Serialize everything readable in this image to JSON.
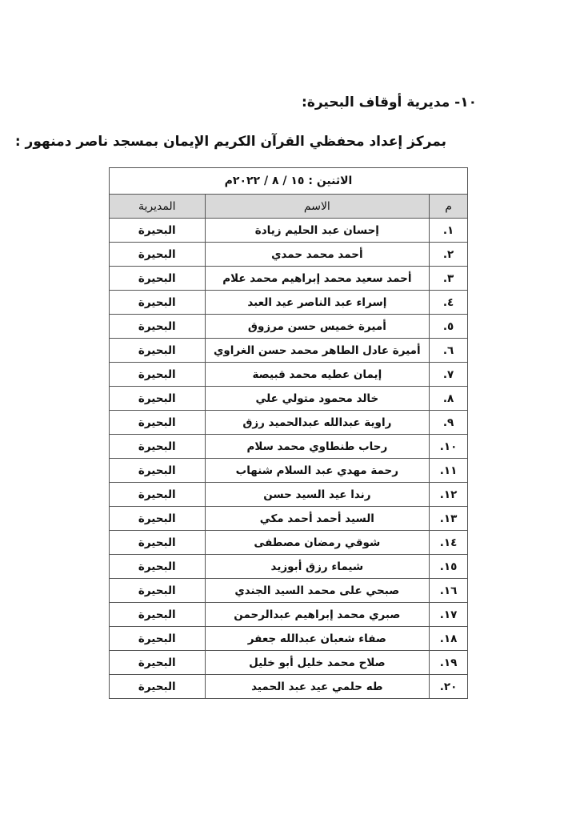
{
  "heading": "١٠- مديرية أوقاف البحيرة:",
  "subheading": "بمركز إعداد محفظي القرآن الكريم الإيمان بمسجد ناصر دمنهور :",
  "table": {
    "date": "الاثنين : ١٥ / ٨ / ٢٠٢٢م",
    "headers": {
      "no": "م",
      "name": "الاسم",
      "directorate": "المديرية"
    },
    "rows": [
      {
        "no": "١.",
        "name": "إحسان عبد الحليم زيادة",
        "directorate": "البحيرة"
      },
      {
        "no": "٢.",
        "name": "أحمد محمد حمدي",
        "directorate": "البحيرة"
      },
      {
        "no": "٣.",
        "name": "أحمد سعيد محمد إبراهيم محمد علام",
        "directorate": "البحيرة"
      },
      {
        "no": "٤.",
        "name": "إسراء عبد الناصر عيد العبد",
        "directorate": "البحيرة"
      },
      {
        "no": "٥.",
        "name": "أميرة خميس حسن مرزوق",
        "directorate": "البحيرة"
      },
      {
        "no": "٦.",
        "name": "أميرة عادل الطاهر محمد حسن الغراوي",
        "directorate": "البحيرة"
      },
      {
        "no": "٧.",
        "name": "إيمان عطيه محمد قبيصة",
        "directorate": "البحيرة"
      },
      {
        "no": "٨.",
        "name": "خالد محمود متولي علي",
        "directorate": "البحيرة"
      },
      {
        "no": "٩.",
        "name": "راوية عبدالله عبدالحميد رزق",
        "directorate": "البحيرة"
      },
      {
        "no": "١٠.",
        "name": "رحاب طنطاوي محمد سلام",
        "directorate": "البحيرة"
      },
      {
        "no": "١١.",
        "name": "رحمة مهدي عبد السلام شنهاب",
        "directorate": "البحيرة"
      },
      {
        "no": "١٢.",
        "name": "رندا عيد السيد حسن",
        "directorate": "البحيرة"
      },
      {
        "no": "١٣.",
        "name": "السيد أحمد أحمد مكي",
        "directorate": "البحيرة"
      },
      {
        "no": "١٤.",
        "name": "شوقي رمضان مصطفى",
        "directorate": "البحيرة"
      },
      {
        "no": "١٥.",
        "name": "شيماء رزق أبوزيد",
        "directorate": "البحيرة"
      },
      {
        "no": "١٦.",
        "name": "صبحي على محمد السيد الجندي",
        "directorate": "البحيرة"
      },
      {
        "no": "١٧.",
        "name": "صبري محمد إبراهيم عبدالرحمن",
        "directorate": "البحيرة"
      },
      {
        "no": "١٨.",
        "name": "صفاء شعبان عبدالله جعفر",
        "directorate": "البحيرة"
      },
      {
        "no": "١٩.",
        "name": "صلاح محمد خليل أبو خليل",
        "directorate": "البحيرة"
      },
      {
        "no": "٢٠.",
        "name": "طه حلمي عيد عبد الحميد",
        "directorate": "البحيرة"
      }
    ]
  }
}
